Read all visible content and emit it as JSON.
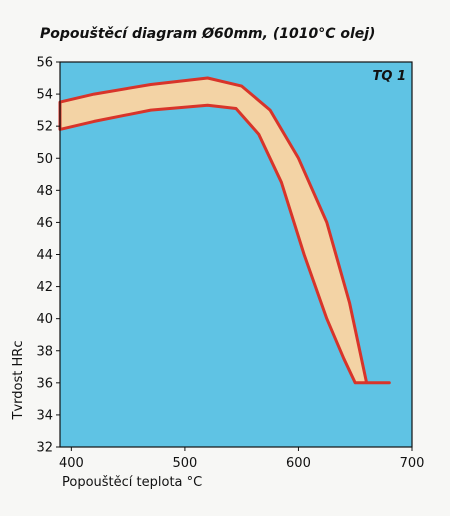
{
  "chart_data": {
    "type": "area",
    "title": "Popouštěcí diagram Ø60mm, (1010°C olej)",
    "annotation": "TQ 1",
    "xlabel": "Popouštěcí teplota °C",
    "ylabel": "Tvrdost HRc",
    "xlim": [
      390,
      700
    ],
    "ylim": [
      32,
      56
    ],
    "x_ticks": [
      "400",
      "500",
      "600",
      "700"
    ],
    "y_ticks": [
      "32",
      "34",
      "36",
      "38",
      "40",
      "42",
      "44",
      "46",
      "48",
      "50",
      "52",
      "54",
      "56"
    ],
    "grid": false,
    "colors": {
      "plot_background": "#5fc3e4",
      "band_fill": "#f3d3a5",
      "band_stroke": "#d8342a"
    },
    "series": [
      {
        "points": [
          [
            390,
            53.5
          ],
          [
            420,
            54.0
          ],
          [
            470,
            54.6
          ],
          [
            520,
            55.0
          ],
          [
            550,
            54.5
          ],
          [
            575,
            53.0
          ],
          [
            600,
            50.0
          ],
          [
            625,
            46.0
          ],
          [
            645,
            41.0
          ],
          [
            660,
            36.0
          ],
          [
            680,
            36.0
          ]
        ]
      },
      {
        "points": [
          [
            390,
            51.8
          ],
          [
            420,
            52.3
          ],
          [
            470,
            53.0
          ],
          [
            520,
            53.3
          ],
          [
            545,
            53.1
          ],
          [
            565,
            51.5
          ],
          [
            585,
            48.5
          ],
          [
            605,
            44.0
          ],
          [
            625,
            40.0
          ],
          [
            640,
            37.5
          ],
          [
            650,
            36.0
          ]
        ]
      }
    ]
  }
}
